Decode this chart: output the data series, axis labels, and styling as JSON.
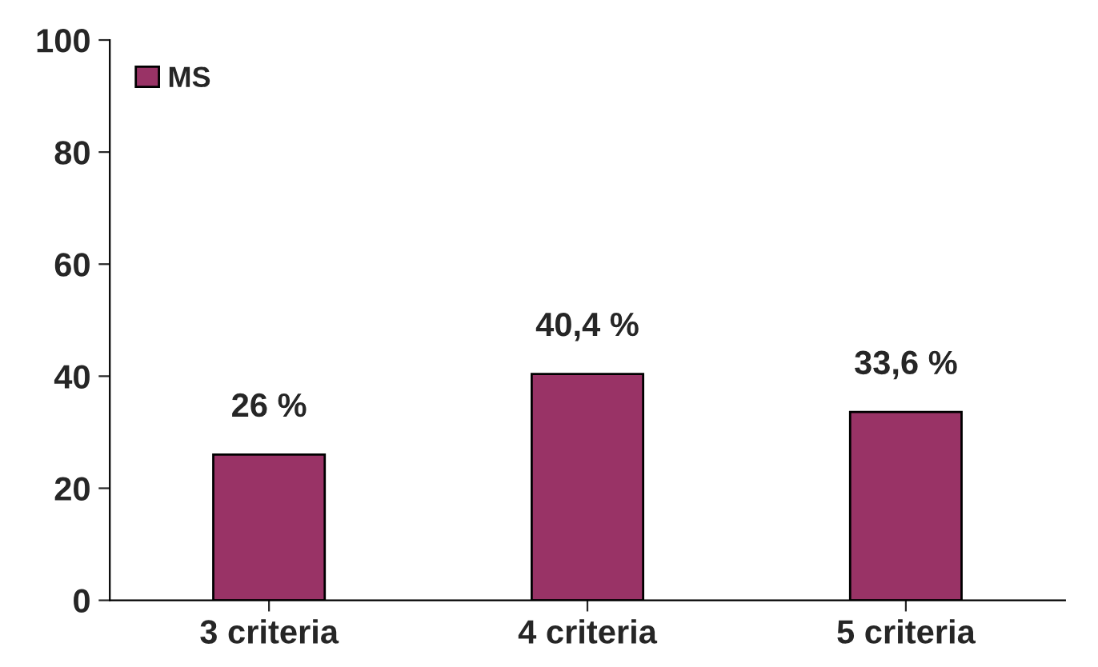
{
  "chart_data": {
    "type": "bar",
    "categories": [
      "3 criteria",
      "4 criteria",
      "5 criteria"
    ],
    "series": [
      {
        "name": "MS",
        "color": "#993366",
        "values": [
          26,
          40.4,
          33.6
        ],
        "value_labels": [
          "26 %",
          "40,4 %",
          "33,6 %"
        ]
      }
    ],
    "ylim": [
      0,
      100
    ],
    "yticks": [
      0,
      20,
      40,
      60,
      80,
      100
    ],
    "grid": false,
    "legend": "top left"
  }
}
